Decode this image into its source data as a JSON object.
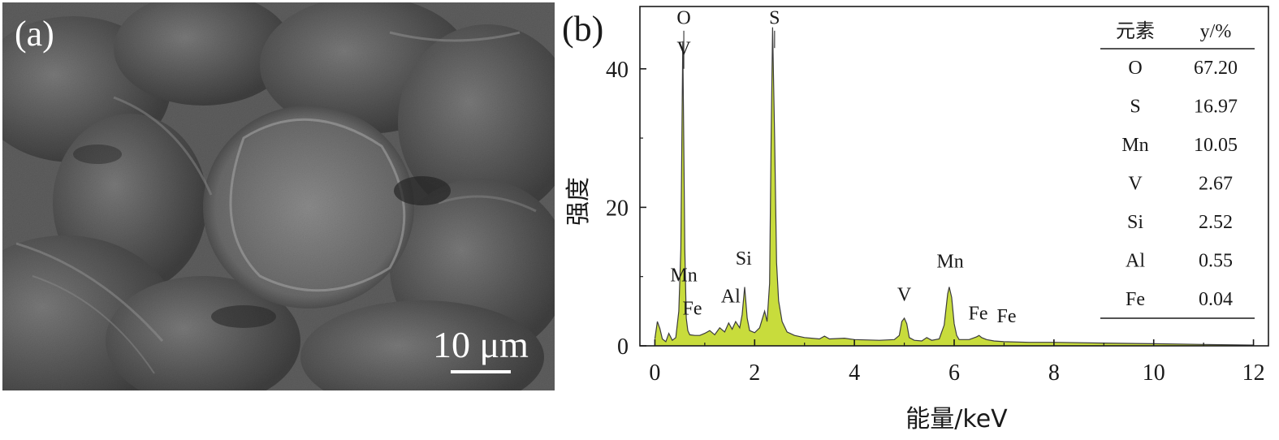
{
  "panel_a": {
    "label": "(a)",
    "scalebar_label": "10 μm",
    "image_description_colors": {
      "base": "#5a5a5a",
      "light": "#9a9a9a",
      "dark": "#2e2e2e"
    }
  },
  "chart_data": {
    "type": "area",
    "panel_label": "(b)",
    "title": "",
    "xlabel": "能量/keV",
    "ylabel": "强度",
    "xlim": [
      -0.3,
      12.3
    ],
    "ylim": [
      0,
      49
    ],
    "xticks": [
      0,
      2,
      4,
      6,
      8,
      10,
      12
    ],
    "yticks": [
      0,
      20,
      40
    ],
    "fill_color": "#c8dc3c",
    "edge_color": "#3c3c3c",
    "spectrum": {
      "x": [
        0,
        0.05,
        0.1,
        0.15,
        0.22,
        0.28,
        0.35,
        0.42,
        0.48,
        0.52,
        0.56,
        0.6,
        0.63,
        0.66,
        0.7,
        0.8,
        0.9,
        1.0,
        1.1,
        1.2,
        1.3,
        1.4,
        1.48,
        1.55,
        1.62,
        1.7,
        1.75,
        1.8,
        1.85,
        1.9,
        2.0,
        2.1,
        2.2,
        2.25,
        2.3,
        2.33,
        2.36,
        2.4,
        2.44,
        2.48,
        2.55,
        2.65,
        2.8,
        3.0,
        3.3,
        3.4,
        3.5,
        3.8,
        4.0,
        4.5,
        4.8,
        4.9,
        4.95,
        5.0,
        5.05,
        5.1,
        5.2,
        5.35,
        5.45,
        5.55,
        5.7,
        5.8,
        5.87,
        5.9,
        5.95,
        6.0,
        6.05,
        6.1,
        6.3,
        6.45,
        6.5,
        6.55,
        6.65,
        6.8,
        7.0,
        7.5,
        8.0,
        9.0,
        10.0,
        11.0,
        12.0
      ],
      "y": [
        1,
        3.5,
        2.5,
        1.0,
        0.6,
        1.8,
        0.8,
        1.2,
        5,
        14,
        44,
        14,
        4,
        2.2,
        1.6,
        1.5,
        1.5,
        1.8,
        2.2,
        1.6,
        2.6,
        2.0,
        3.3,
        2.4,
        3.5,
        2.6,
        4.5,
        8.5,
        4.0,
        2.2,
        1.9,
        2.6,
        5.0,
        3.5,
        9.0,
        30,
        46,
        30,
        12,
        6.5,
        3.5,
        2.0,
        1.5,
        1.2,
        1.0,
        1.4,
        1.0,
        1.1,
        0.9,
        0.8,
        0.9,
        1.5,
        3.5,
        4.0,
        3.2,
        1.2,
        0.8,
        0.7,
        1.2,
        0.8,
        1.0,
        3.0,
        7.5,
        8.5,
        7.0,
        3.2,
        1.5,
        0.9,
        0.9,
        1.3,
        1.5,
        1.2,
        0.9,
        0.7,
        0.6,
        0.5,
        0.5,
        0.4,
        0.3,
        0.2,
        0.1
      ]
    },
    "peak_labels": [
      {
        "text": "O",
        "x": 0.58,
        "y": 46.5
      },
      {
        "text": "V",
        "x": 0.58,
        "y": 42.0
      },
      {
        "text": "S",
        "x": 2.4,
        "y": 46.5
      },
      {
        "text": "Mn",
        "x": 0.58,
        "y": 9.3
      },
      {
        "text": "Fe",
        "x": 0.75,
        "y": 4.5
      },
      {
        "text": "Al",
        "x": 1.52,
        "y": 6.3
      },
      {
        "text": "Si",
        "x": 1.78,
        "y": 11.7
      },
      {
        "text": "V",
        "x": 5.0,
        "y": 6.5
      },
      {
        "text": "Mn",
        "x": 5.92,
        "y": 11.3
      },
      {
        "text": "Fe",
        "x": 6.48,
        "y": 3.8
      },
      {
        "text": "Fe",
        "x": 7.05,
        "y": 3.4
      }
    ],
    "composition_table": {
      "headers": [
        "元素",
        "y/%"
      ],
      "rows": [
        [
          "O",
          "67.20"
        ],
        [
          "S",
          "16.97"
        ],
        [
          "Mn",
          "10.05"
        ],
        [
          "V",
          "2.67"
        ],
        [
          "Si",
          "2.52"
        ],
        [
          "Al",
          "0.55"
        ],
        [
          "Fe",
          "0.04"
        ]
      ]
    }
  }
}
